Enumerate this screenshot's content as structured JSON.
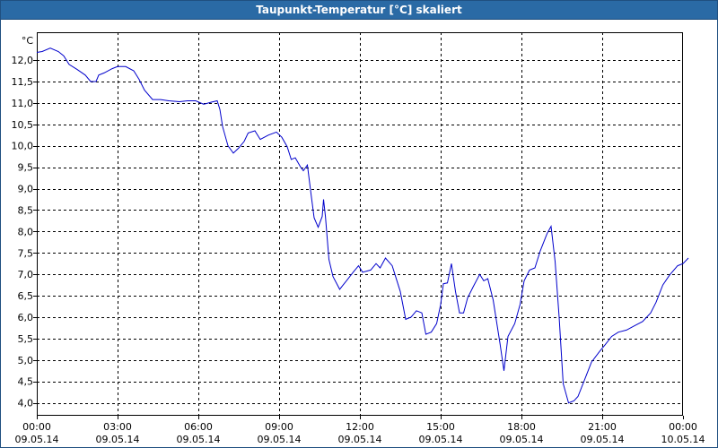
{
  "title": "Taupunkt-Temperatur [°C] skaliert",
  "chart_data": {
    "type": "line",
    "unit": "°C",
    "ylim": [
      3.7,
      12.65
    ],
    "xlim": [
      0,
      24
    ],
    "grid": true,
    "yticks": [
      {
        "value": 12.0,
        "label": "12,0"
      },
      {
        "value": 11.5,
        "label": "11,5"
      },
      {
        "value": 11.0,
        "label": "11,0"
      },
      {
        "value": 10.5,
        "label": "10,5"
      },
      {
        "value": 10.0,
        "label": "10,0"
      },
      {
        "value": 9.5,
        "label": "9,5"
      },
      {
        "value": 9.0,
        "label": "9,0"
      },
      {
        "value": 8.5,
        "label": "8,5"
      },
      {
        "value": 8.0,
        "label": "8,0"
      },
      {
        "value": 7.5,
        "label": "7,5"
      },
      {
        "value": 7.0,
        "label": "7,0"
      },
      {
        "value": 6.5,
        "label": "6,5"
      },
      {
        "value": 6.0,
        "label": "6,0"
      },
      {
        "value": 5.5,
        "label": "5,5"
      },
      {
        "value": 5.0,
        "label": "5,0"
      },
      {
        "value": 4.5,
        "label": "4,5"
      },
      {
        "value": 4.0,
        "label": "4,0"
      }
    ],
    "xticks": [
      {
        "value": 0,
        "time": "00:00",
        "date": "09.05.14"
      },
      {
        "value": 3,
        "time": "03:00",
        "date": "09.05.14"
      },
      {
        "value": 6,
        "time": "06:00",
        "date": "09.05.14"
      },
      {
        "value": 9,
        "time": "09:00",
        "date": "09.05.14"
      },
      {
        "value": 12,
        "time": "12:00",
        "date": "09.05.14"
      },
      {
        "value": 15,
        "time": "15:00",
        "date": "09.05.14"
      },
      {
        "value": 18,
        "time": "18:00",
        "date": "09.05.14"
      },
      {
        "value": 21,
        "time": "21:00",
        "date": "09.05.14"
      },
      {
        "value": 24,
        "time": "00:00",
        "date": "10.05.14"
      }
    ],
    "series": [
      {
        "color": "#0000cc",
        "points": [
          [
            0.0,
            12.18
          ],
          [
            0.2,
            12.2
          ],
          [
            0.5,
            12.28
          ],
          [
            0.8,
            12.2
          ],
          [
            1.0,
            12.1
          ],
          [
            1.2,
            11.9
          ],
          [
            1.5,
            11.78
          ],
          [
            1.8,
            11.65
          ],
          [
            2.0,
            11.5
          ],
          [
            2.2,
            11.5
          ],
          [
            2.3,
            11.65
          ],
          [
            2.5,
            11.7
          ],
          [
            2.8,
            11.8
          ],
          [
            3.0,
            11.85
          ],
          [
            3.3,
            11.85
          ],
          [
            3.6,
            11.75
          ],
          [
            3.8,
            11.55
          ],
          [
            4.0,
            11.3
          ],
          [
            4.3,
            11.08
          ],
          [
            4.6,
            11.08
          ],
          [
            4.9,
            11.05
          ],
          [
            5.3,
            11.03
          ],
          [
            5.6,
            11.05
          ],
          [
            5.9,
            11.05
          ],
          [
            6.2,
            10.97
          ],
          [
            6.5,
            11.02
          ],
          [
            6.7,
            11.05
          ],
          [
            6.8,
            10.85
          ],
          [
            6.9,
            10.45
          ],
          [
            7.1,
            10.0
          ],
          [
            7.3,
            9.83
          ],
          [
            7.5,
            9.95
          ],
          [
            7.7,
            10.1
          ],
          [
            7.85,
            10.3
          ],
          [
            8.1,
            10.35
          ],
          [
            8.3,
            10.15
          ],
          [
            8.6,
            10.25
          ],
          [
            8.9,
            10.32
          ],
          [
            9.1,
            10.2
          ],
          [
            9.3,
            9.98
          ],
          [
            9.45,
            9.68
          ],
          [
            9.6,
            9.72
          ],
          [
            9.8,
            9.5
          ],
          [
            9.9,
            9.42
          ],
          [
            10.05,
            9.55
          ],
          [
            10.1,
            9.3
          ],
          [
            10.2,
            8.8
          ],
          [
            10.3,
            8.32
          ],
          [
            10.45,
            8.1
          ],
          [
            10.6,
            8.35
          ],
          [
            10.65,
            8.75
          ],
          [
            10.72,
            8.35
          ],
          [
            10.85,
            7.35
          ],
          [
            11.0,
            6.95
          ],
          [
            11.25,
            6.65
          ],
          [
            11.5,
            6.85
          ],
          [
            11.75,
            7.05
          ],
          [
            11.95,
            7.2
          ],
          [
            12.1,
            7.05
          ],
          [
            12.4,
            7.1
          ],
          [
            12.6,
            7.25
          ],
          [
            12.75,
            7.15
          ],
          [
            12.95,
            7.38
          ],
          [
            13.2,
            7.2
          ],
          [
            13.5,
            6.6
          ],
          [
            13.7,
            5.95
          ],
          [
            13.9,
            6.0
          ],
          [
            14.1,
            6.15
          ],
          [
            14.3,
            6.1
          ],
          [
            14.45,
            5.6
          ],
          [
            14.65,
            5.65
          ],
          [
            14.85,
            5.85
          ],
          [
            15.0,
            6.3
          ],
          [
            15.1,
            6.78
          ],
          [
            15.25,
            6.8
          ],
          [
            15.4,
            7.25
          ],
          [
            15.55,
            6.6
          ],
          [
            15.7,
            6.1
          ],
          [
            15.85,
            6.1
          ],
          [
            16.0,
            6.45
          ],
          [
            16.2,
            6.7
          ],
          [
            16.45,
            7.0
          ],
          [
            16.6,
            6.85
          ],
          [
            16.75,
            6.9
          ],
          [
            16.95,
            6.4
          ],
          [
            17.2,
            5.4
          ],
          [
            17.35,
            4.75
          ],
          [
            17.5,
            5.55
          ],
          [
            17.75,
            5.85
          ],
          [
            17.95,
            6.3
          ],
          [
            18.1,
            6.85
          ],
          [
            18.3,
            7.1
          ],
          [
            18.5,
            7.15
          ],
          [
            18.7,
            7.55
          ],
          [
            18.95,
            7.95
          ],
          [
            19.1,
            8.12
          ],
          [
            19.25,
            7.3
          ],
          [
            19.4,
            6.0
          ],
          [
            19.55,
            4.45
          ],
          [
            19.75,
            4.0
          ],
          [
            19.95,
            4.05
          ],
          [
            20.1,
            4.15
          ],
          [
            20.35,
            4.55
          ],
          [
            20.6,
            4.95
          ],
          [
            20.9,
            5.2
          ],
          [
            21.1,
            5.35
          ],
          [
            21.35,
            5.55
          ],
          [
            21.6,
            5.65
          ],
          [
            21.9,
            5.7
          ],
          [
            22.2,
            5.8
          ],
          [
            22.5,
            5.9
          ],
          [
            22.8,
            6.1
          ],
          [
            23.0,
            6.35
          ],
          [
            23.25,
            6.75
          ],
          [
            23.5,
            6.98
          ],
          [
            23.8,
            7.2
          ],
          [
            24.0,
            7.25
          ],
          [
            24.2,
            7.38
          ]
        ]
      }
    ]
  }
}
